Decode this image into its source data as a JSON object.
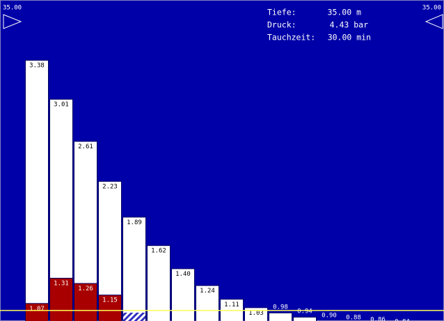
{
  "chart_data": {
    "type": "bar",
    "stacked": false,
    "ylim": [
      0.9,
      3.95
    ],
    "reference_line": 1.0,
    "depth_left": "35.00",
    "depth_right": "35.00",
    "info": [
      {
        "label": "Tiefe:",
        "value": "35.00 m"
      },
      {
        "label": "Druck:",
        "value": "4.43 bar"
      },
      {
        "label": "Tauchzeit:",
        "value": "30.00 min"
      }
    ],
    "series": [
      {
        "color": "#ffffff",
        "values": [
          3.38,
          3.01,
          2.61,
          2.23,
          1.89,
          1.62,
          1.4,
          1.24,
          1.11,
          1.03,
          0.98,
          0.94,
          0.9,
          0.88,
          0.86,
          0.84
        ],
        "value_labels": [
          "3.38",
          "3.01",
          "2.61",
          "2.23",
          "1.89",
          "1.62",
          "1.40",
          "1.24",
          "1.11",
          "1.03",
          "0.98",
          "0.94",
          "0.90",
          "0.88",
          "0.86",
          "0.84"
        ]
      },
      {
        "color": "#a80000",
        "values": [
          1.07,
          1.31,
          1.26,
          1.15,
          null,
          null,
          null,
          null,
          null,
          null,
          null,
          null,
          null,
          null,
          null,
          null
        ],
        "value_labels": [
          "1.07",
          "1.31",
          "1.26",
          "1.15",
          null,
          null,
          null,
          null,
          null,
          null,
          null,
          null,
          null,
          null,
          null,
          null
        ]
      }
    ]
  }
}
